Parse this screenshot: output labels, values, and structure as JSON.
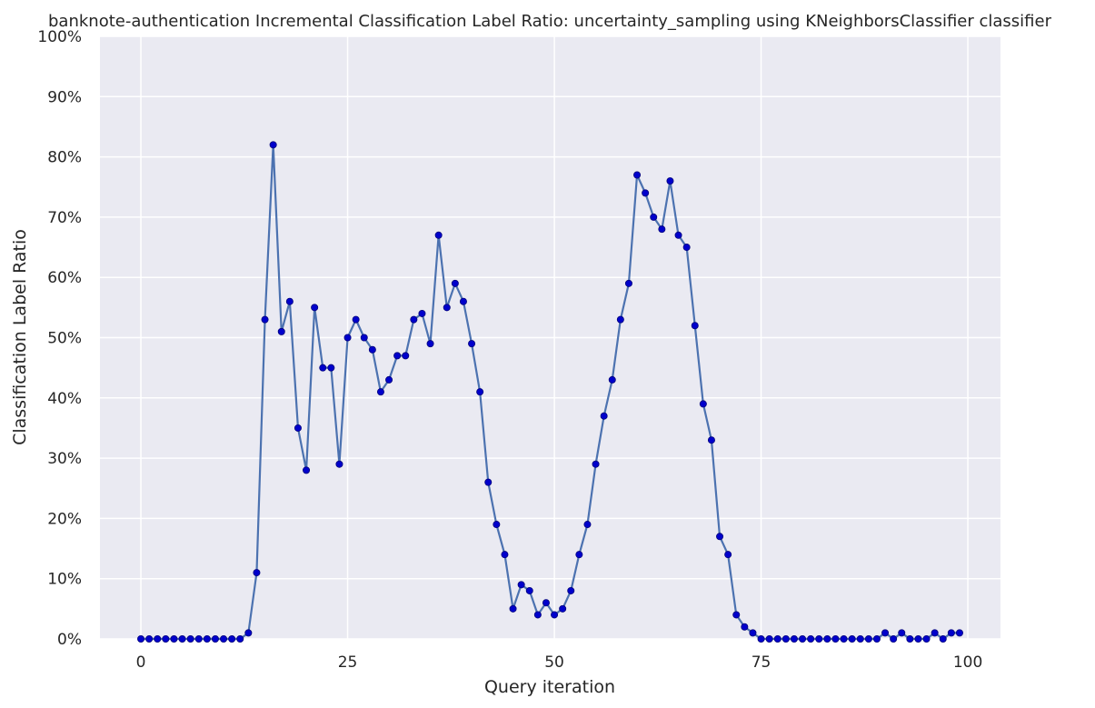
{
  "chart_data": {
    "type": "line",
    "title": "banknote-authentication Incremental Classification Label Ratio: uncertainty_sampling using KNeighborsClassifier classifier",
    "xlabel": "Query iteration",
    "ylabel": "Classification Label Ratio",
    "xlim": [
      -4.95,
      103.95
    ],
    "ylim": [
      0,
      1
    ],
    "x_ticks": [
      0,
      25,
      50,
      75,
      100
    ],
    "x_tick_labels": [
      "0",
      "25",
      "50",
      "75",
      "100"
    ],
    "y_ticks": [
      0,
      0.1,
      0.2,
      0.3,
      0.4,
      0.5,
      0.6,
      0.7,
      0.8,
      0.9,
      1.0
    ],
    "y_tick_labels": [
      "0%",
      "10%",
      "20%",
      "30%",
      "40%",
      "50%",
      "60%",
      "70%",
      "80%",
      "90%",
      "100%"
    ],
    "grid": true,
    "background": "#eaeaf2",
    "colors": {
      "line": "#4c72b0",
      "marker": "#0000cc"
    },
    "series": [
      {
        "x": [
          0,
          1,
          2,
          3,
          4,
          5,
          6,
          7,
          8,
          9,
          10,
          11,
          12,
          13,
          14,
          15,
          16,
          17,
          18,
          19,
          20,
          21,
          22,
          23,
          24,
          25,
          26,
          27,
          28,
          29,
          30,
          31,
          32,
          33,
          34,
          35,
          36,
          37,
          38,
          39,
          40,
          41,
          42,
          43,
          44,
          45,
          46,
          47,
          48,
          49,
          50,
          51,
          52,
          53,
          54,
          55,
          56,
          57,
          58,
          59,
          60,
          61,
          62,
          63,
          64,
          65,
          66,
          67,
          68,
          69,
          70,
          71,
          72,
          73,
          74,
          75,
          76,
          77,
          78,
          79,
          80,
          81,
          82,
          83,
          84,
          85,
          86,
          87,
          88,
          89,
          90,
          91,
          92,
          93,
          94,
          95,
          96,
          97,
          98,
          99
        ],
        "values": [
          0,
          0,
          0,
          0,
          0,
          0,
          0,
          0,
          0,
          0,
          0,
          0,
          0,
          0.01,
          0.11,
          0.53,
          0.82,
          0.51,
          0.56,
          0.35,
          0.28,
          0.55,
          0.45,
          0.45,
          0.29,
          0.5,
          0.53,
          0.5,
          0.48,
          0.41,
          0.43,
          0.47,
          0.47,
          0.53,
          0.54,
          0.49,
          0.67,
          0.55,
          0.59,
          0.56,
          0.49,
          0.41,
          0.26,
          0.19,
          0.14,
          0.05,
          0.09,
          0.08,
          0.04,
          0.06,
          0.04,
          0.05,
          0.08,
          0.14,
          0.19,
          0.29,
          0.37,
          0.43,
          0.53,
          0.59,
          0.77,
          0.74,
          0.7,
          0.68,
          0.76,
          0.67,
          0.65,
          0.52,
          0.39,
          0.33,
          0.17,
          0.14,
          0.04,
          0.02,
          0.01,
          0,
          0,
          0,
          0,
          0,
          0,
          0,
          0,
          0,
          0,
          0,
          0,
          0,
          0,
          0,
          0.01,
          0,
          0.01,
          0,
          0,
          0,
          0.01,
          0,
          0.01,
          0.01
        ]
      }
    ]
  }
}
